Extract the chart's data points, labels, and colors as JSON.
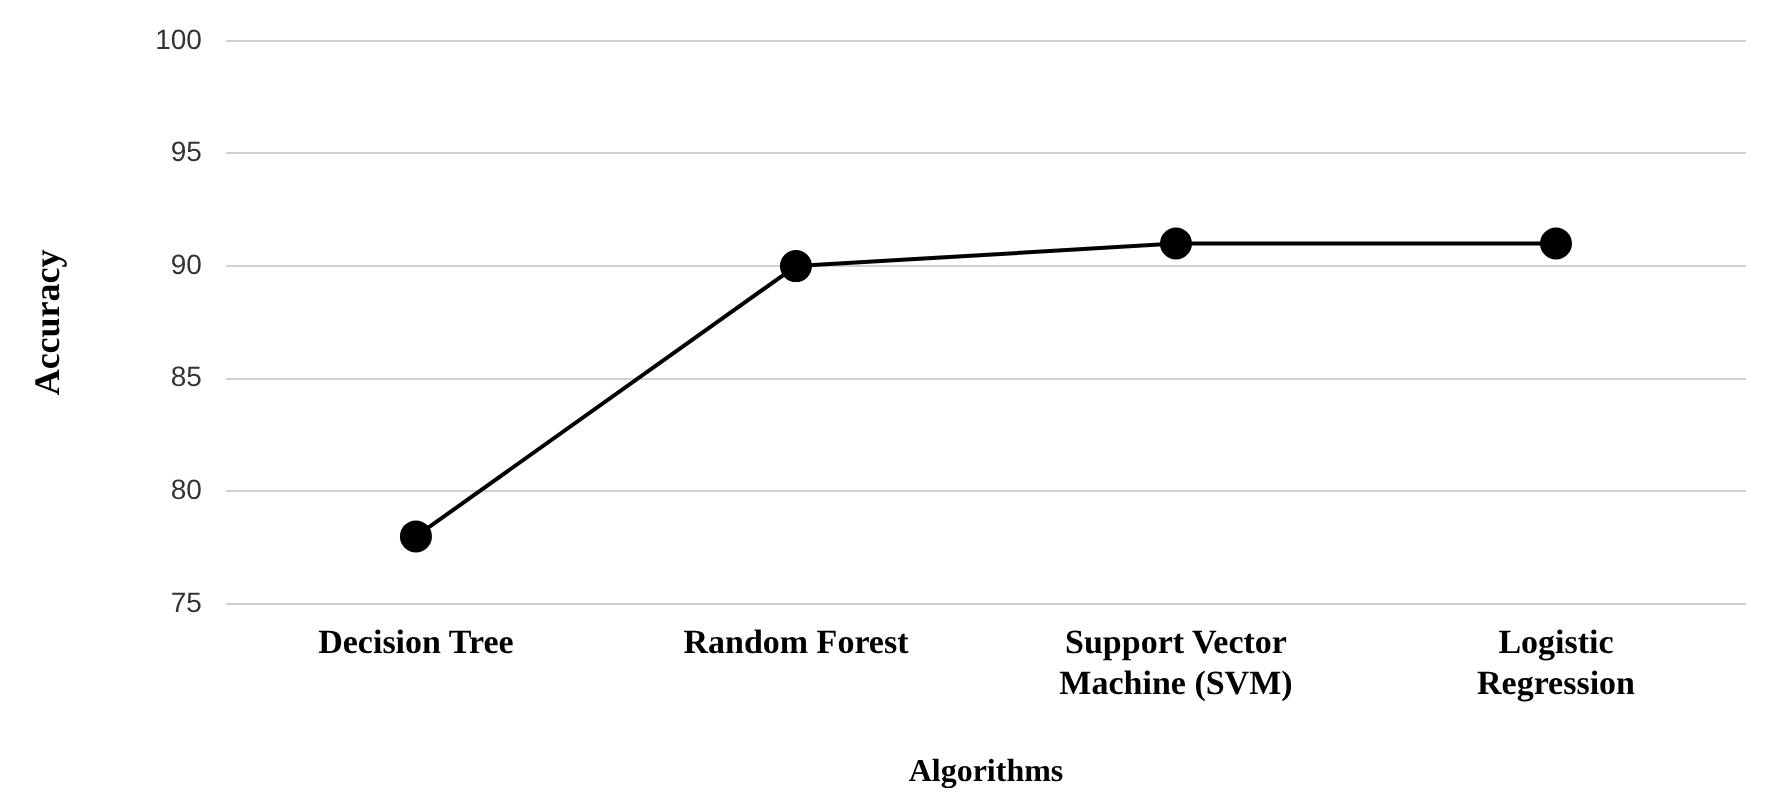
{
  "chart_data": {
    "type": "line",
    "xlabel": "Algorithms",
    "ylabel": "Accuracy",
    "categories": [
      "Decision Tree",
      "Random Forest",
      "Support Vector Machine (SVM)",
      "Logistic Regression"
    ],
    "series": [
      {
        "color": "#000000",
        "values": [
          78,
          90,
          91,
          91
        ]
      }
    ],
    "ylim": [
      75,
      100
    ],
    "yticks": [
      75,
      80,
      85,
      90,
      95,
      100
    ],
    "grid": "y",
    "legend": false,
    "marker": "circle",
    "line_style": "solid"
  }
}
